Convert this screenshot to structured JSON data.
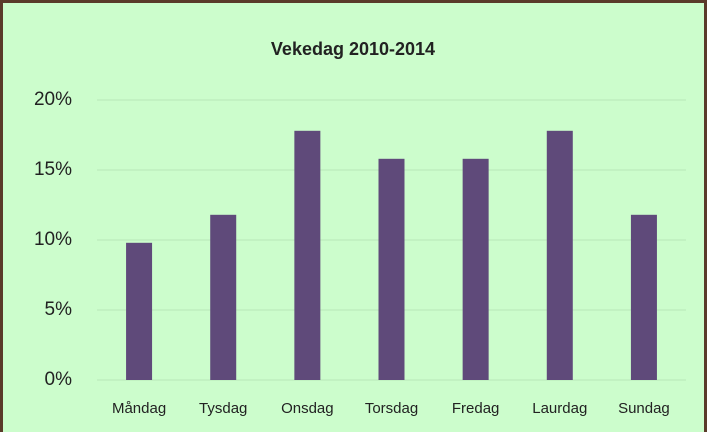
{
  "chart_data": {
    "type": "bar",
    "title": "Vekedag 2010-2014",
    "categories": [
      "Måndag",
      "Tysdag",
      "Onsdag",
      "Torsdag",
      "Fredag",
      "Laurdag",
      "Sundag"
    ],
    "values": [
      9.8,
      11.8,
      17.8,
      15.8,
      15.8,
      17.8,
      11.8
    ],
    "color": "#5f4a7a",
    "ylim": [
      0,
      20
    ],
    "yticks": [
      {
        "value": 0,
        "label": "0%"
      },
      {
        "value": 5,
        "label": "5%"
      },
      {
        "value": 10,
        "label": "10%"
      },
      {
        "value": 15,
        "label": "15%"
      },
      {
        "value": 20,
        "label": "20%"
      }
    ],
    "grid": true
  }
}
